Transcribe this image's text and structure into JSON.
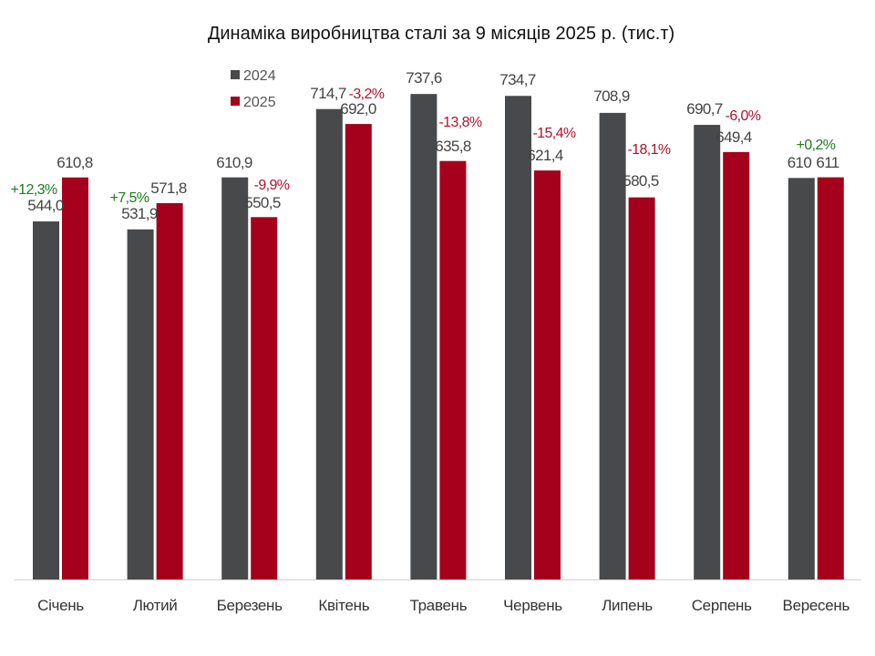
{
  "chart_data": {
    "type": "bar",
    "title": "Динаміка виробництва сталі за 9 місяців 2025 р. (тис.т)",
    "xlabel": "",
    "ylabel": "",
    "ylim": [
      0,
      800
    ],
    "grid": false,
    "legend_position": "top-left",
    "categories": [
      "Січень",
      "Лютий",
      "Березень",
      "Квітень",
      "Травень",
      "Червень",
      "Липень",
      "Серпень",
      "Вересень"
    ],
    "series": [
      {
        "name": "2024",
        "color": "#48494b",
        "values": [
          544.0,
          531.9,
          610.9,
          714.7,
          737.6,
          734.7,
          708.9,
          690.7,
          610
        ],
        "labels": [
          "544,0",
          "531,9",
          "610,9",
          "714,7",
          "737,6",
          "734,7",
          "708,9",
          "690,7",
          "610"
        ]
      },
      {
        "name": "2025",
        "color": "#a5001c",
        "values": [
          610.8,
          571.8,
          550.5,
          692.0,
          635.8,
          621.4,
          580.5,
          649.4,
          611
        ],
        "labels": [
          "610,8",
          "571,8",
          "550,5",
          "692,0",
          "635,8",
          "621,4",
          "580,5",
          "649,4",
          "611"
        ]
      }
    ],
    "change_labels": [
      "+12,3%",
      "+7,5%",
      "-9,9%",
      "-3,2%",
      "-13,8%",
      "-15,4%",
      "-18,1%",
      "-6,0%",
      "+0,2%"
    ],
    "change_colors": {
      "positive": "#1e7a1e",
      "negative": "#b0122c"
    }
  }
}
